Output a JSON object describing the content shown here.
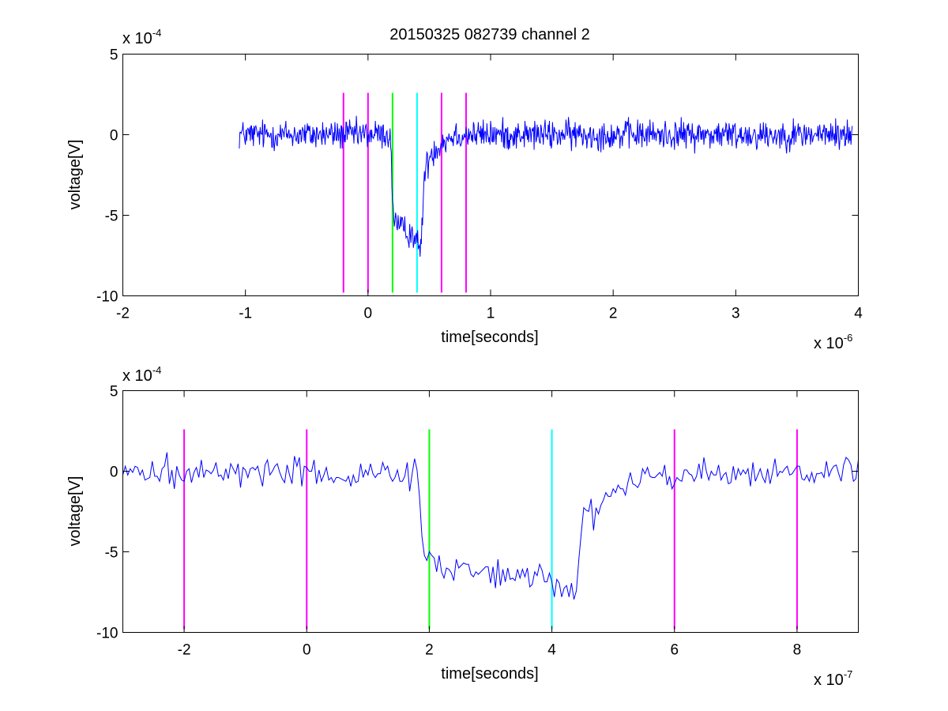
{
  "chart_data": [
    {
      "type": "line",
      "title": "20150325 082739 channel 2",
      "xlabel": "time[seconds]",
      "ylabel": "voltage[V]",
      "x_multiplier": "x 10",
      "x_multiplier_exp": "-6",
      "y_multiplier": "x 10",
      "y_multiplier_exp": "-4",
      "xlim": [
        -2e-06,
        4e-06
      ],
      "ylim": [
        -0.001,
        0.0005
      ],
      "x_ticks": [
        -2e-06,
        -1e-06,
        0,
        1e-06,
        2e-06,
        3e-06,
        4e-06
      ],
      "x_tick_labels": [
        "-2",
        "-1",
        "0",
        "1",
        "2",
        "3",
        "4"
      ],
      "y_ticks": [
        -0.001,
        -0.0005,
        0,
        0.0005
      ],
      "y_tick_labels": [
        "-10",
        "-5",
        "0",
        "5"
      ],
      "series_color": "#0000ff",
      "signal_profile": [
        [
          -1.05e-06,
          0
        ],
        [
          1.8e-07,
          0
        ],
        [
          2.05e-07,
          -0.00048
        ],
        [
          2.5e-07,
          -0.00058
        ],
        [
          3.8e-07,
          -0.00062
        ],
        [
          4e-07,
          -0.00068
        ],
        [
          4.3e-07,
          -0.00072
        ],
        [
          4.6e-07,
          -0.00025
        ],
        [
          5.1e-07,
          -0.00012
        ],
        [
          6e-07,
          -5e-05
        ],
        [
          7e-07,
          0
        ],
        [
          3.95e-06,
          0
        ]
      ],
      "noise_amplitude": 8e-05,
      "marker_lines": [
        {
          "x": -2e-07,
          "color": "#ff00ff"
        },
        {
          "x": 0,
          "color": "#ff00ff"
        },
        {
          "x": 2e-07,
          "color": "#00ff00"
        },
        {
          "x": 4e-07,
          "color": "#00ffff"
        },
        {
          "x": 6e-07,
          "color": "#ff00ff"
        },
        {
          "x": 8e-07,
          "color": "#ff00ff"
        }
      ],
      "marker_range": [
        -0.00098,
        0.00026
      ]
    },
    {
      "type": "line",
      "title": "",
      "xlabel": "time[seconds]",
      "ylabel": "voltage[V]",
      "x_multiplier": "x 10",
      "x_multiplier_exp": "-7",
      "y_multiplier": "x 10",
      "y_multiplier_exp": "-4",
      "xlim": [
        -3e-07,
        9e-07
      ],
      "ylim": [
        -0.001,
        0.0005
      ],
      "x_ticks": [
        -2e-07,
        0,
        2e-07,
        4e-07,
        6e-07,
        8e-07
      ],
      "x_tick_labels": [
        "-2",
        "0",
        "2",
        "4",
        "6",
        "8"
      ],
      "y_ticks": [
        -0.001,
        -0.0005,
        0,
        0.0005
      ],
      "y_tick_labels": [
        "-10",
        "-5",
        "0",
        "5"
      ],
      "series_color": "#0000ff",
      "signal_profile": [
        [
          -3e-07,
          0
        ],
        [
          1.8e-07,
          -2e-05
        ],
        [
          1.9e-07,
          -0.00048
        ],
        [
          2.05e-07,
          -0.0005
        ],
        [
          2.1e-07,
          -0.00058
        ],
        [
          3e-07,
          -0.00062
        ],
        [
          4e-07,
          -0.00068
        ],
        [
          4.4e-07,
          -0.00072
        ],
        [
          4.5e-07,
          -0.00028
        ],
        [
          4.7e-07,
          -0.00025
        ],
        [
          5e-07,
          -0.00012
        ],
        [
          5.5e-07,
          -3e-05
        ],
        [
          9e-07,
          0
        ]
      ],
      "noise_amplitude": 8e-05,
      "marker_lines": [
        {
          "x": -2e-07,
          "color": "#ff00ff"
        },
        {
          "x": 0,
          "color": "#ff00ff"
        },
        {
          "x": 2e-07,
          "color": "#00ff00"
        },
        {
          "x": 4e-07,
          "color": "#00ffff"
        },
        {
          "x": 6e-07,
          "color": "#ff00ff"
        },
        {
          "x": 8e-07,
          "color": "#ff00ff"
        }
      ],
      "marker_range": [
        -0.00098,
        0.00026
      ]
    }
  ]
}
